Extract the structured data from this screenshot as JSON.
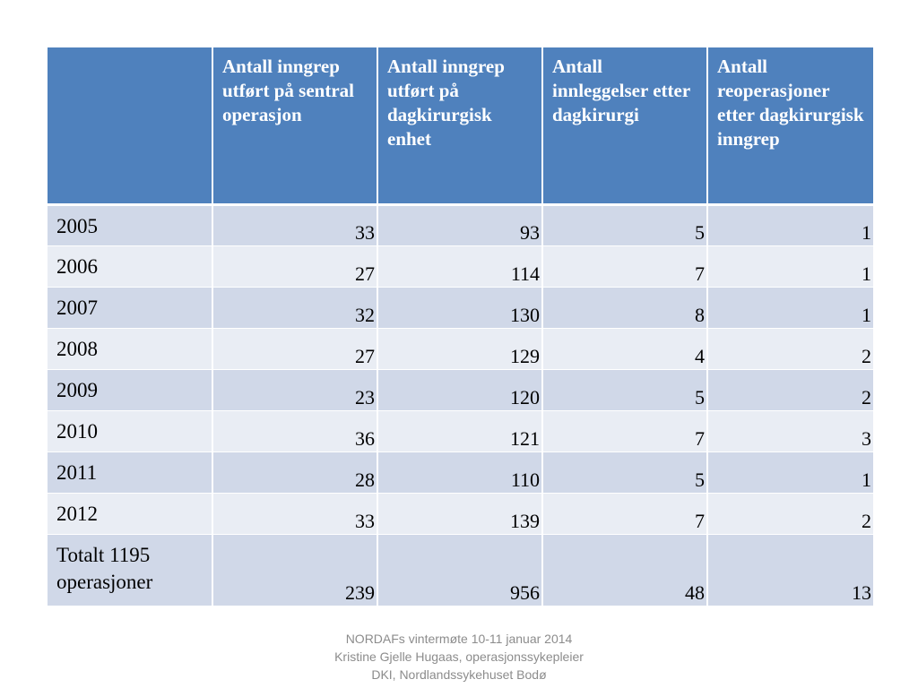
{
  "table": {
    "headers": [
      "",
      "Antall inngrep utført på sentral operasjon",
      "Antall inngrep utført på dagkirurgisk enhet",
      "Antall innleggelser etter dagkirurgi",
      "Antall reoperasjoner etter dagkirurgisk inngrep"
    ],
    "rows": [
      {
        "label": "2005",
        "values": [
          "33",
          "93",
          "5",
          "1"
        ]
      },
      {
        "label": "2006",
        "values": [
          "27",
          "114",
          "7",
          "1"
        ]
      },
      {
        "label": "2007",
        "values": [
          "32",
          "130",
          "8",
          "1"
        ]
      },
      {
        "label": "2008",
        "values": [
          "27",
          "129",
          "4",
          "2"
        ]
      },
      {
        "label": "2009",
        "values": [
          "23",
          "120",
          "5",
          "2"
        ]
      },
      {
        "label": "2010",
        "values": [
          "36",
          "121",
          "7",
          "3"
        ]
      },
      {
        "label": "2011",
        "values": [
          "28",
          "110",
          "5",
          "1"
        ]
      },
      {
        "label": "2012",
        "values": [
          "33",
          "139",
          "7",
          "2"
        ]
      },
      {
        "label": "Totalt 1195 operasjoner",
        "values": [
          "239",
          "956",
          "48",
          "13"
        ]
      }
    ]
  },
  "footer": {
    "line1": "NORDAFs vintermøte 10-11 januar 2014",
    "line2": "Kristine Gjelle Hugaas, operasjonssykepleier",
    "line3": "DKI, Nordlandssykehuset Bodø"
  },
  "colors": {
    "header_bg": "#4f81bd",
    "row_odd_bg": "#d0d8e8",
    "row_even_bg": "#e9edf4",
    "footer_text": "#8c8c8c"
  }
}
